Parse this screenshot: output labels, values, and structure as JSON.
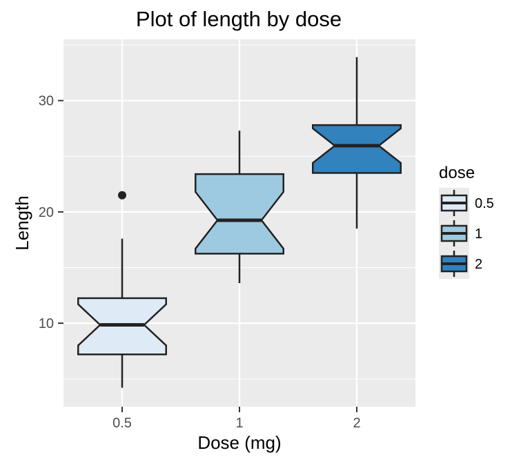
{
  "chart_data": {
    "type": "boxplot",
    "title": "Plot of length  by dose",
    "xlabel": "Dose (mg)",
    "ylabel": "Length",
    "categories": [
      "0.5",
      "1",
      "2"
    ],
    "ylim": [
      2.5,
      35.5
    ],
    "yticks": [
      10,
      20,
      30
    ],
    "notched": true,
    "grid": true,
    "legend": {
      "title": "dose",
      "placement": "right",
      "entries": [
        "0.5",
        "1",
        "2"
      ]
    },
    "colors": [
      "#deebf7",
      "#9ecae1",
      "#3182bd"
    ],
    "boxes": [
      {
        "category": "0.5",
        "min": 4.2,
        "q1": 7.2,
        "median": 9.85,
        "q3": 12.25,
        "max": 17.6,
        "notch_low": 8.0,
        "notch_high": 11.7,
        "outliers": [
          21.5
        ]
      },
      {
        "category": "1",
        "min": 13.6,
        "q1": 16.25,
        "median": 19.25,
        "q3": 23.4,
        "max": 27.3,
        "notch_low": 16.7,
        "notch_high": 21.8,
        "outliers": []
      },
      {
        "category": "2",
        "min": 18.5,
        "q1": 23.5,
        "median": 25.95,
        "q3": 27.8,
        "max": 33.9,
        "notch_low": 24.4,
        "notch_high": 27.5,
        "outliers": []
      }
    ]
  }
}
